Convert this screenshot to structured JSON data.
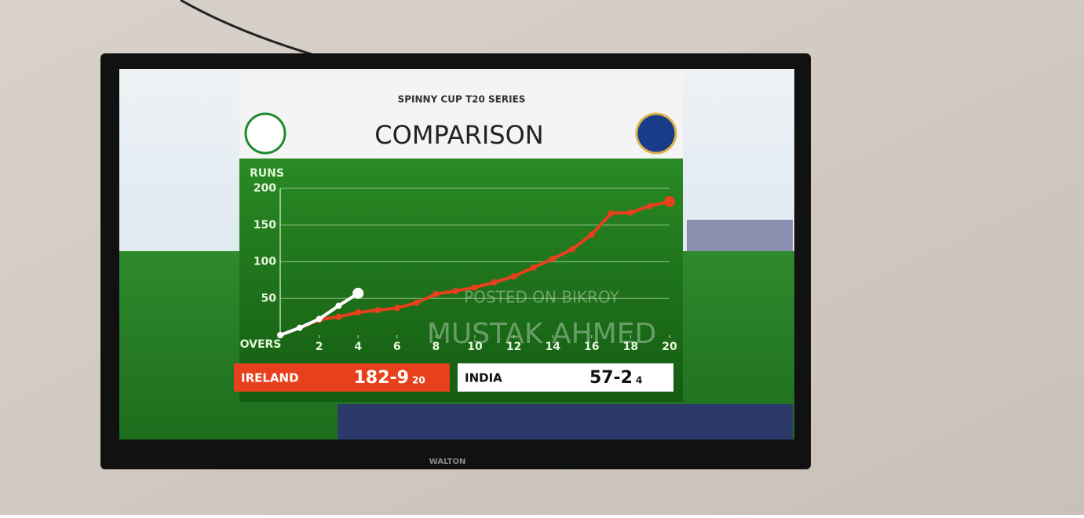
{
  "chart_data": {
    "type": "line",
    "series_title": "SPINNY CUP T20 SERIES",
    "title": "COMPARISON",
    "y_label": "RUNS",
    "x_label": "OVERS",
    "xlim": [
      0,
      20
    ],
    "xticks": [
      2,
      4,
      6,
      8,
      10,
      12,
      14,
      16,
      18,
      20
    ],
    "ylim": [
      0,
      200
    ],
    "yticks": [
      50,
      100,
      150,
      200
    ],
    "grid": true,
    "series": [
      {
        "name": "IRELAND",
        "color": "#e8401c",
        "score": "182-9",
        "overs": 20,
        "x": [
          0,
          1,
          2,
          3,
          4,
          5,
          6,
          7,
          8,
          9,
          10,
          11,
          12,
          13,
          14,
          15,
          16,
          17,
          18,
          19,
          20
        ],
        "values": [
          0,
          10,
          21,
          25,
          31,
          34,
          37,
          44,
          56,
          60,
          65,
          72,
          80,
          92,
          104,
          117,
          137,
          166,
          167,
          176,
          182
        ]
      },
      {
        "name": "INDIA",
        "color": "#ffffff",
        "score": "57-2",
        "overs": 4,
        "x": [
          0,
          1,
          2,
          3,
          4
        ],
        "values": [
          0,
          10,
          22,
          40,
          57
        ]
      }
    ],
    "watermark": [
      "POSTED ON BIKROY",
      "MUSTAK AHMED"
    ],
    "brand": "WALTON"
  }
}
